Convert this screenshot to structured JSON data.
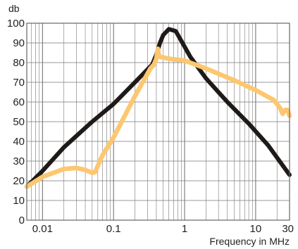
{
  "chart_data": {
    "type": "line",
    "title": "",
    "ylabel": "db",
    "xlabel": "Frequency in MHz",
    "x_scale": "log",
    "xlim": [
      0.006,
      30
    ],
    "ylim": [
      0,
      100
    ],
    "grid": true,
    "yticks": [
      0,
      10,
      20,
      30,
      40,
      50,
      60,
      70,
      80,
      90,
      100
    ],
    "xticks": [
      {
        "value": 0.01,
        "label": "0.01"
      },
      {
        "value": 0.1,
        "label": "0.1"
      },
      {
        "value": 1,
        "label": "1"
      },
      {
        "value": 10,
        "label": "10"
      },
      {
        "value": 30,
        "label": "30"
      }
    ],
    "colors": {
      "black_series": "#1f1a17",
      "yellow_series": "#fdc770",
      "grid": "#777777"
    },
    "series": [
      {
        "color": "#1f1a17",
        "points": [
          [
            0.006,
            17
          ],
          [
            0.01,
            25
          ],
          [
            0.02,
            37
          ],
          [
            0.05,
            50
          ],
          [
            0.1,
            59
          ],
          [
            0.2,
            70
          ],
          [
            0.35,
            79
          ],
          [
            0.4,
            84
          ],
          [
            0.45,
            90
          ],
          [
            0.5,
            94
          ],
          [
            0.6,
            97
          ],
          [
            0.75,
            96
          ],
          [
            0.9,
            91
          ],
          [
            1.2,
            83
          ],
          [
            2,
            72
          ],
          [
            4,
            60
          ],
          [
            8,
            49
          ],
          [
            15,
            38
          ],
          [
            30,
            23
          ]
        ]
      },
      {
        "color": "#fdc770",
        "points": [
          [
            0.006,
            17
          ],
          [
            0.01,
            22
          ],
          [
            0.02,
            26
          ],
          [
            0.03,
            26.5
          ],
          [
            0.04,
            25.5
          ],
          [
            0.05,
            24
          ],
          [
            0.055,
            24.5
          ],
          [
            0.07,
            33
          ],
          [
            0.1,
            42
          ],
          [
            0.2,
            63
          ],
          [
            0.33,
            77
          ],
          [
            0.37,
            79
          ],
          [
            0.4,
            82
          ],
          [
            0.42,
            87
          ],
          [
            0.44,
            83
          ],
          [
            0.6,
            82
          ],
          [
            1,
            81
          ],
          [
            2,
            77
          ],
          [
            5,
            71
          ],
          [
            10,
            66
          ],
          [
            18,
            61
          ],
          [
            22,
            57
          ],
          [
            24,
            54
          ],
          [
            26,
            56
          ],
          [
            28,
            56
          ],
          [
            30,
            53
          ]
        ]
      }
    ]
  }
}
